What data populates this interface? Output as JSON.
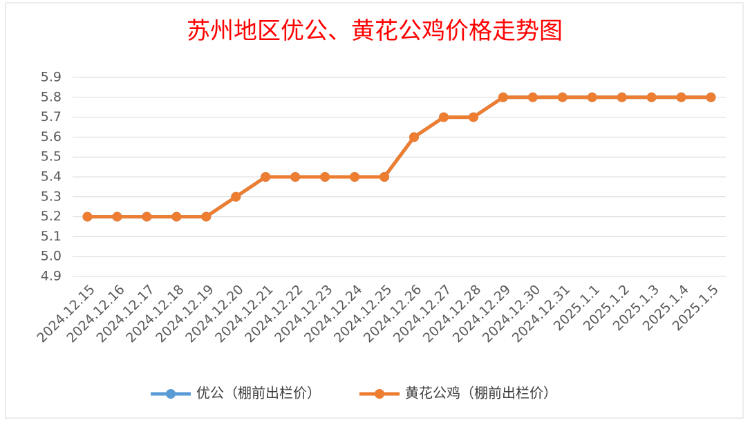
{
  "chart_data": {
    "type": "line",
    "title": "苏州地区优公、黄花公鸡价格走势图",
    "categories": [
      "2024.12.15",
      "2024.12.16",
      "2024.12.17",
      "2024.12.18",
      "2024.12.19",
      "2024.12.20",
      "2024.12.21",
      "2024.12.22",
      "2024.12.23",
      "2024.12.24",
      "2024.12.25",
      "2024.12.26",
      "2024.12.27",
      "2024.12.28",
      "2024.12.29",
      "2024.12.30",
      "2024.12.31",
      "2025.1.1",
      "2025.1.2",
      "2025.1.3",
      "2025.1.4",
      "2025.1.5"
    ],
    "series": [
      {
        "name": "优公（棚前出栏价）",
        "color": "#5b9bd5",
        "values": [
          5.2,
          5.2,
          5.2,
          5.2,
          5.2,
          5.3,
          5.4,
          5.4,
          5.4,
          5.4,
          5.4,
          5.6,
          5.7,
          5.7,
          5.8,
          5.8,
          5.8,
          5.8,
          5.8,
          5.8,
          5.8,
          5.8
        ]
      },
      {
        "name": "黄花公鸡（棚前出栏价）",
        "color": "#ed7d31",
        "values": [
          5.2,
          5.2,
          5.2,
          5.2,
          5.2,
          5.3,
          5.4,
          5.4,
          5.4,
          5.4,
          5.4,
          5.6,
          5.7,
          5.7,
          5.8,
          5.8,
          5.8,
          5.8,
          5.8,
          5.8,
          5.8,
          5.8
        ]
      }
    ],
    "ylim": [
      4.9,
      5.9
    ],
    "yticks": [
      4.9,
      {
        "value": 5,
        "label": "5.0"
      },
      5.1,
      5.2,
      5.3,
      5.4,
      5.5,
      5.6,
      5.7,
      5.8,
      5.9
    ],
    "grid": true,
    "legend": "bottom"
  }
}
